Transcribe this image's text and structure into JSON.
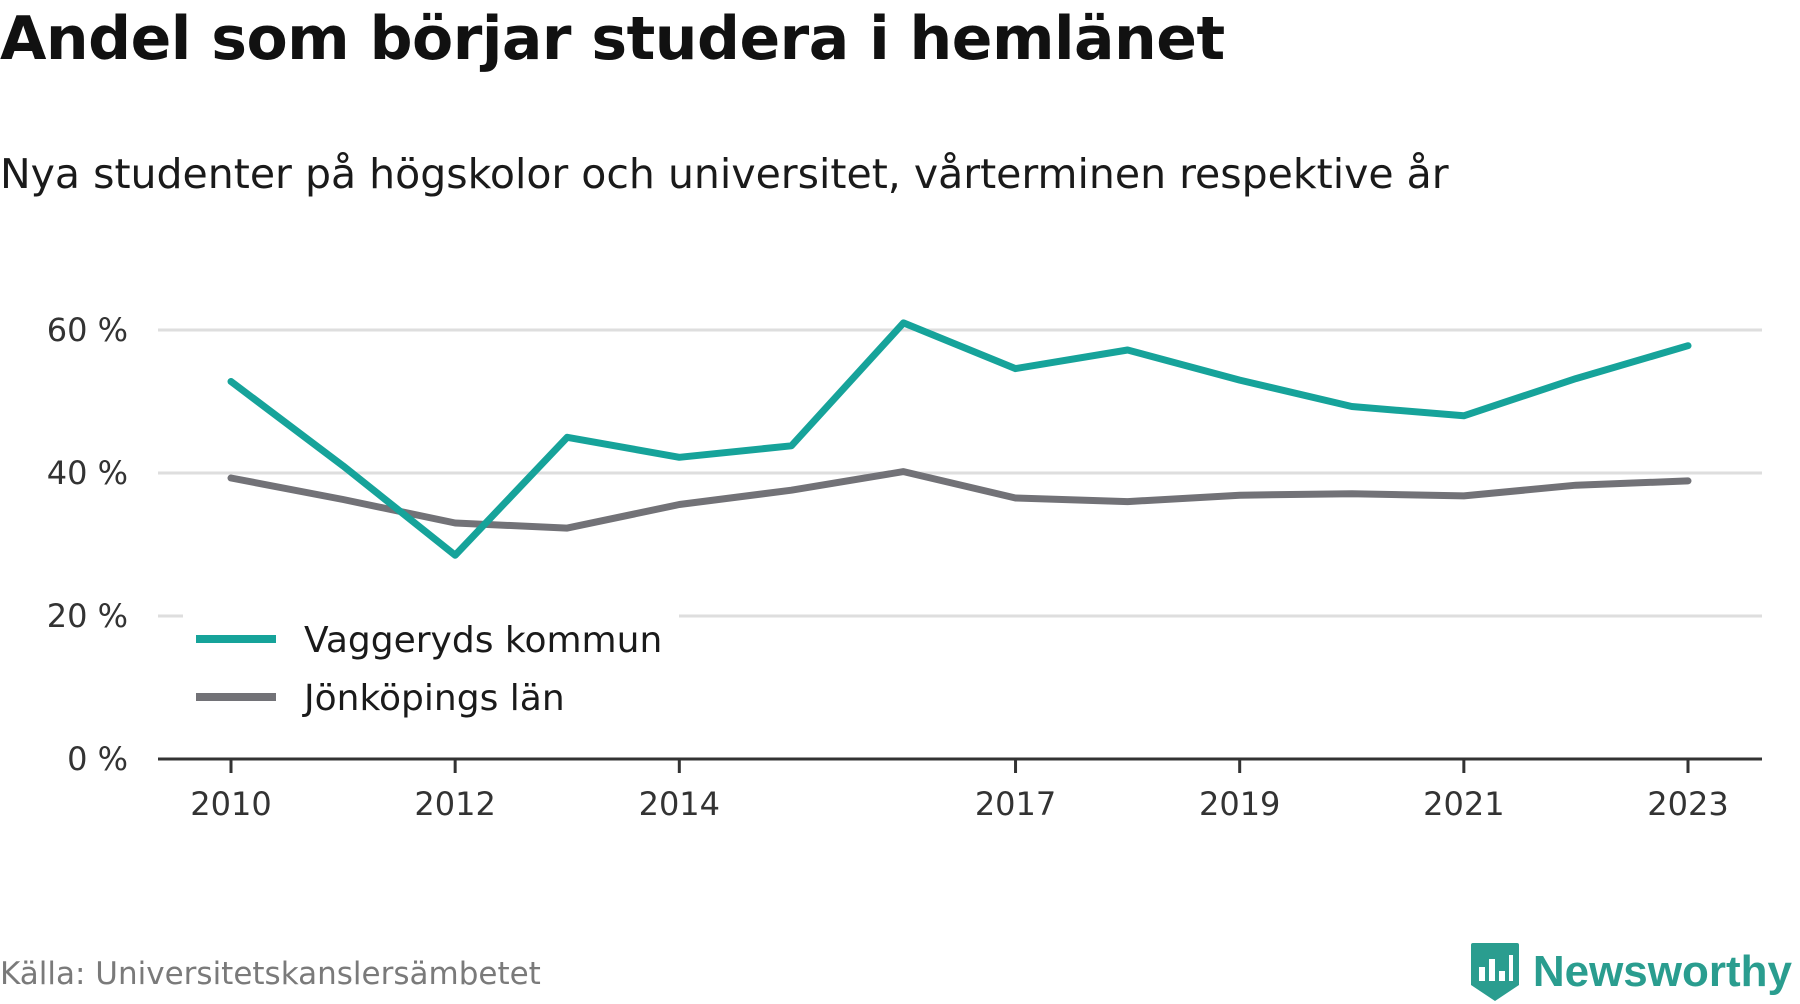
{
  "title": "Andel som börjar studera i hemlänet",
  "subtitle": "Nya studenter på högskolor och universitet, vårterminen respektive år",
  "source": "Källa: Universitetskanslersämbetet",
  "brand": {
    "name": "Newsworthy",
    "icon": "newsworthy-logo-icon",
    "color": "#2a9d8f"
  },
  "chart_data": {
    "type": "line",
    "x": [
      2010,
      2011,
      2012,
      2013,
      2014,
      2015,
      2016,
      2017,
      2018,
      2019,
      2020,
      2021,
      2022,
      2023
    ],
    "x_ticks": [
      2010,
      2012,
      2014,
      2017,
      2019,
      2021,
      2023
    ],
    "x_tick_labels": [
      "2010",
      "2012",
      "2014",
      "2017",
      "2019",
      "2021",
      "2023"
    ],
    "y_ticks": [
      0,
      20,
      40,
      60
    ],
    "y_tick_labels": [
      "0 %",
      "20 %",
      "40 %",
      "60 %"
    ],
    "ylim": [
      0,
      60
    ],
    "xlim": [
      2009.35,
      2023.6
    ],
    "grid": true,
    "legend_position": "bottom-left",
    "series": [
      {
        "name": "Vaggeryds kommun",
        "color": "#16a39a",
        "values": [
          52.8,
          41.0,
          28.5,
          45.0,
          42.2,
          43.8,
          61.0,
          54.6,
          57.2,
          53.0,
          49.3,
          48.0,
          53.2,
          57.8
        ]
      },
      {
        "name": "Jönköpings län",
        "color": "#727277",
        "values": [
          39.3,
          36.3,
          33.0,
          32.3,
          35.6,
          37.6,
          40.2,
          36.5,
          36.0,
          36.9,
          37.1,
          36.8,
          38.3,
          38.9
        ]
      }
    ]
  }
}
